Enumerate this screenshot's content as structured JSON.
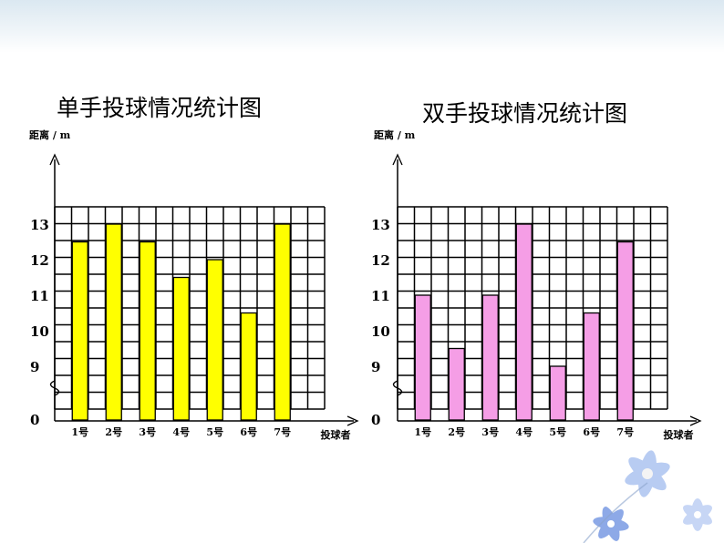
{
  "chart_data": [
    {
      "type": "bar",
      "title": "单手投球情况统计图",
      "ylabel": "距离 / m",
      "xlabel": "投球者",
      "categories": [
        "1号",
        "2号",
        "3号",
        "4号",
        "5号",
        "6号",
        "7号"
      ],
      "values": [
        12.5,
        13,
        12.5,
        11.5,
        12,
        10.5,
        13
      ],
      "yticks": [
        0,
        9,
        10,
        11,
        12,
        13
      ],
      "ylim": [
        8.5,
        13.5
      ],
      "axis_break": true,
      "grid": true,
      "bar_color": "#ffff00"
    },
    {
      "type": "bar",
      "title": "双手投球情况统计图",
      "ylabel": "距离 / m",
      "xlabel": "投球者",
      "categories": [
        "1号",
        "2号",
        "3号",
        "4号",
        "5号",
        "6号",
        "7号"
      ],
      "values": [
        11,
        9.5,
        11,
        13,
        9,
        10.5,
        12.5
      ],
      "yticks": [
        0,
        9,
        10,
        11,
        12,
        13
      ],
      "ylim": [
        8.5,
        13.5
      ],
      "axis_break": true,
      "grid": true,
      "bar_color": "#f59ee6"
    }
  ],
  "decoration": {
    "top_band_color": "#dbe8f1",
    "flower_color": "#6a8fe0"
  }
}
